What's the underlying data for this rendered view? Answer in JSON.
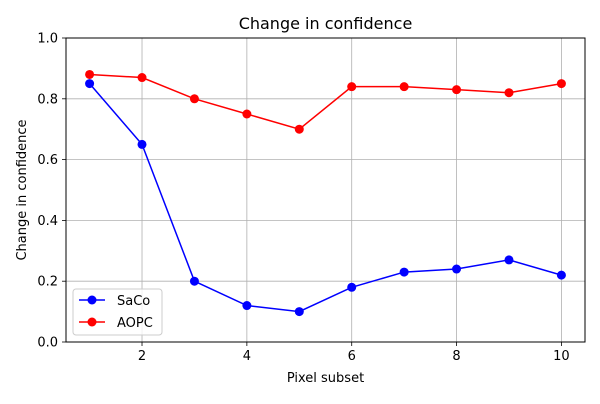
{
  "chart_data": {
    "type": "line",
    "title": "Change in confidence",
    "xlabel": "Pixel subset",
    "ylabel": "Change in confidence",
    "x": [
      1,
      2,
      3,
      4,
      5,
      6,
      7,
      8,
      9,
      10
    ],
    "xlim": [
      0.55,
      10.45
    ],
    "ylim": [
      0.0,
      1.0
    ],
    "xticks": [
      2,
      4,
      6,
      8,
      10
    ],
    "yticks": [
      0.0,
      0.2,
      0.4,
      0.6,
      0.8,
      1.0
    ],
    "xtick_labels": [
      "2",
      "4",
      "6",
      "8",
      "10"
    ],
    "ytick_labels": [
      "0.0",
      "0.2",
      "0.4",
      "0.6",
      "0.8",
      "1.0"
    ],
    "grid": true,
    "legend_position": "lower-left",
    "series": [
      {
        "name": "SaCo",
        "color": "#0000ff",
        "marker": "circle",
        "values": [
          0.85,
          0.65,
          0.2,
          0.12,
          0.1,
          0.18,
          0.23,
          0.24,
          0.27,
          0.22
        ]
      },
      {
        "name": "AOPC",
        "color": "#ff0000",
        "marker": "circle",
        "values": [
          0.88,
          0.87,
          0.8,
          0.75,
          0.7,
          0.84,
          0.84,
          0.83,
          0.82,
          0.85
        ]
      }
    ]
  }
}
